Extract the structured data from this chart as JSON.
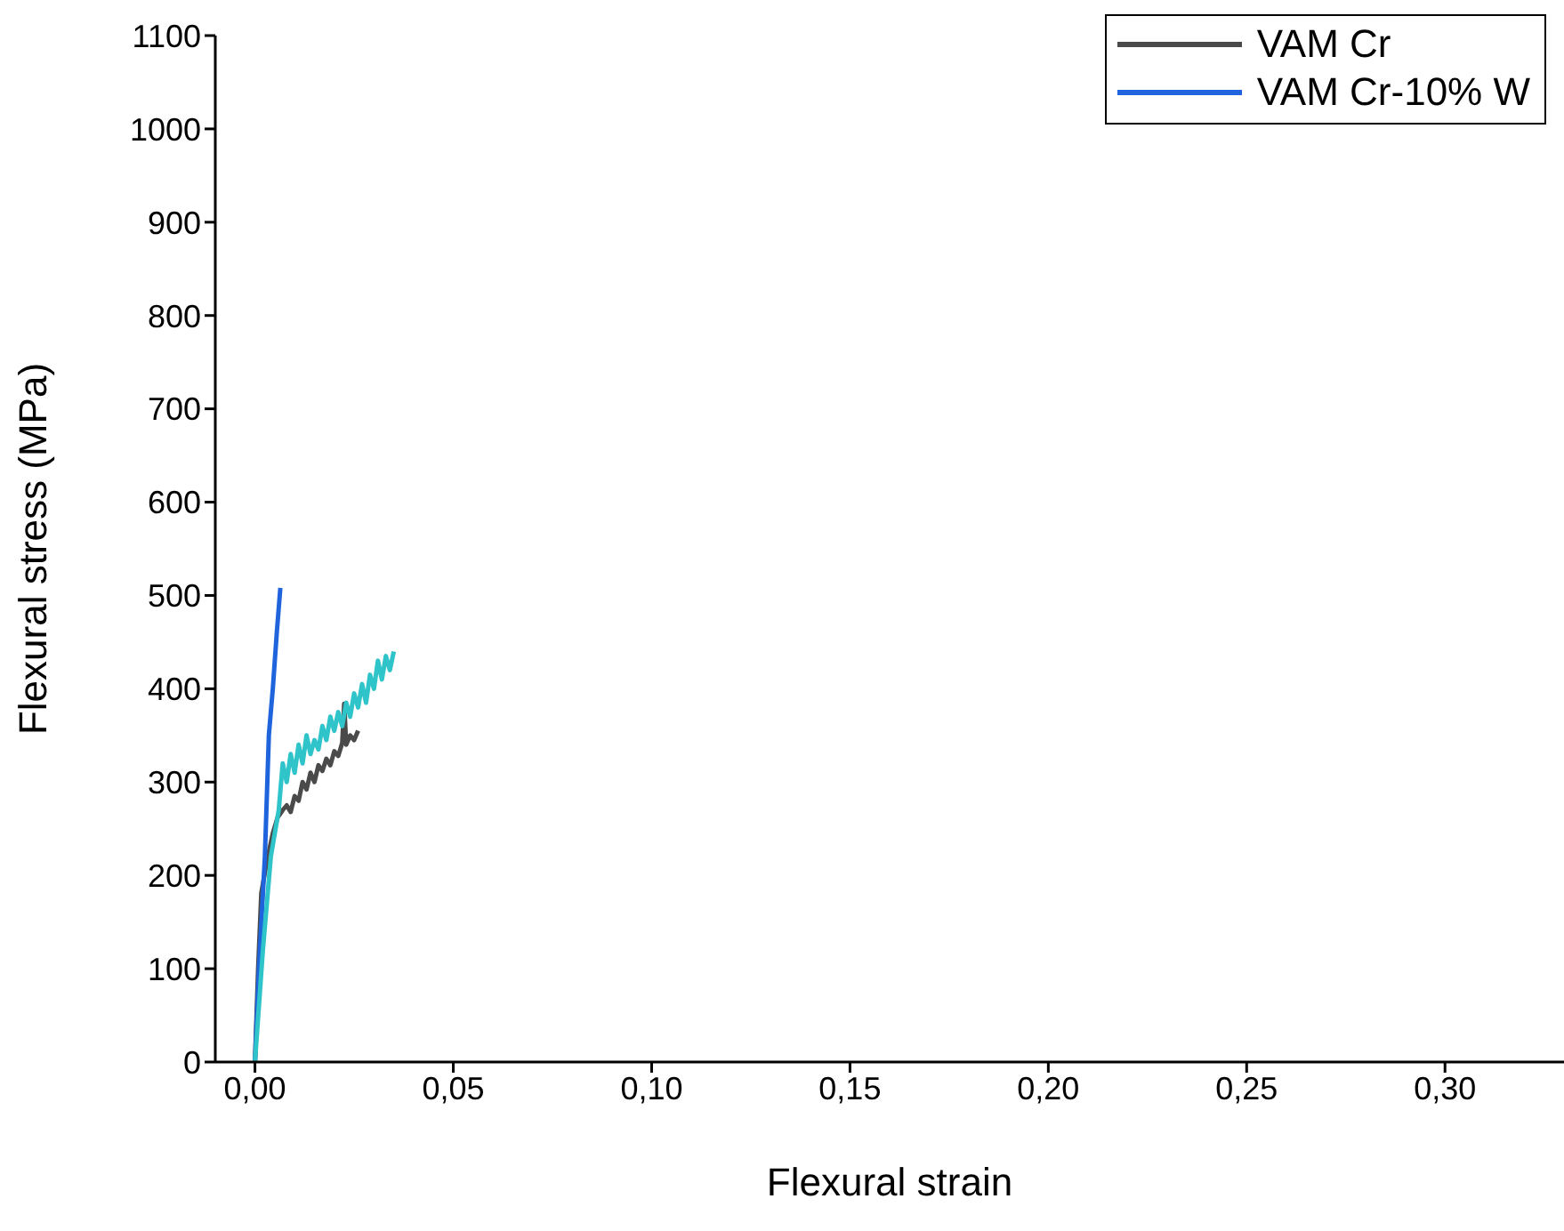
{
  "chart_data": {
    "type": "line",
    "xlabel": "Flexural strain",
    "ylabel": "Flexural stress (MPa)",
    "xlim": [
      -0.01,
      0.33
    ],
    "ylim": [
      0,
      1100
    ],
    "xticks": [
      {
        "value": 0,
        "label": "0,00"
      },
      {
        "value": 0.05,
        "label": "0,05"
      },
      {
        "value": 0.1,
        "label": "0,10"
      },
      {
        "value": 0.15,
        "label": "0,15"
      },
      {
        "value": 0.2,
        "label": "0,20"
      },
      {
        "value": 0.25,
        "label": "0,25"
      },
      {
        "value": 0.3,
        "label": "0,30"
      }
    ],
    "yticks": [
      0,
      100,
      200,
      300,
      400,
      500,
      600,
      700,
      800,
      900,
      1000,
      1100
    ],
    "grid": false,
    "legend": "top right",
    "marker": "none",
    "line_style": "solid",
    "series": [
      {
        "name": "VAM Cr",
        "color": "#4a4a4a",
        "x": [
          0,
          0.0008,
          0.0016,
          0.003,
          0.0045,
          0.0057,
          0.007,
          0.008,
          0.009,
          0.01,
          0.011,
          0.012,
          0.013,
          0.014,
          0.015,
          0.016,
          0.017,
          0.018,
          0.019,
          0.02,
          0.021,
          0.022,
          0.0225,
          0.023,
          0.024,
          0.025,
          0.026
        ],
        "values": [
          0,
          100,
          181,
          215,
          245,
          262,
          270,
          275,
          268,
          285,
          280,
          300,
          292,
          310,
          300,
          318,
          312,
          325,
          318,
          333,
          328,
          342,
          384,
          340,
          350,
          345,
          355
        ]
      },
      {
        "name": "VAM Cr-10% W",
        "color": "#1f64dc",
        "x": [
          0,
          0.001,
          0.0025,
          0.0035,
          0.0045,
          0.0055,
          0.0064
        ],
        "values": [
          0,
          100,
          220,
          350,
          400,
          460,
          508
        ]
      },
      {
        "color": "#2ec4c9",
        "x": [
          0,
          0.002,
          0.004,
          0.006,
          0.007,
          0.008,
          0.009,
          0.01,
          0.011,
          0.012,
          0.013,
          0.014,
          0.015,
          0.016,
          0.017,
          0.018,
          0.019,
          0.02,
          0.021,
          0.022,
          0.023,
          0.024,
          0.025,
          0.026,
          0.027,
          0.028,
          0.029,
          0.03,
          0.031,
          0.032,
          0.033,
          0.034,
          0.035
        ],
        "values": [
          0,
          120,
          220,
          270,
          320,
          300,
          330,
          310,
          340,
          320,
          350,
          330,
          345,
          335,
          360,
          345,
          370,
          355,
          375,
          360,
          385,
          370,
          395,
          380,
          405,
          385,
          415,
          400,
          430,
          410,
          435,
          420,
          440
        ]
      }
    ]
  }
}
